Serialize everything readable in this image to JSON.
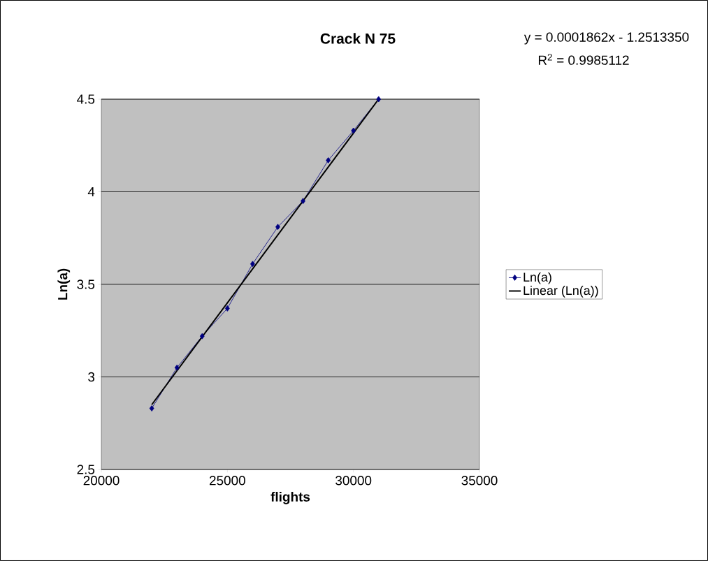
{
  "chart_data": {
    "type": "line",
    "title": "Crack N 75",
    "xlabel": "flights",
    "ylabel": "Ln(a)",
    "annotations": [
      "y = 0.0001862x - 1.2513350",
      "R$^{2}$ = 0.9985112"
    ],
    "x": [
      22000,
      23000,
      24000,
      25000,
      26000,
      27000,
      28000,
      29000,
      30000,
      31000
    ],
    "series": [
      {
        "name": "Ln(a)",
        "color": "#000080",
        "marker": "diamond",
        "values": [
          2.83,
          3.05,
          3.22,
          3.37,
          3.61,
          3.81,
          3.95,
          4.17,
          4.33,
          4.5
        ]
      },
      {
        "name": "Linear (Ln(a))",
        "color": "#000000",
        "marker": "none",
        "x": [
          22000,
          31000
        ],
        "values": [
          2.85,
          4.5
        ]
      }
    ],
    "xlim": [
      20000,
      35000
    ],
    "ylim": [
      2.5,
      4.5
    ],
    "xticks": [
      20000,
      25000,
      30000,
      35000
    ],
    "yticks": [
      2.5,
      3,
      3.5,
      4,
      4.5
    ],
    "grid": "y",
    "legend": "right"
  }
}
